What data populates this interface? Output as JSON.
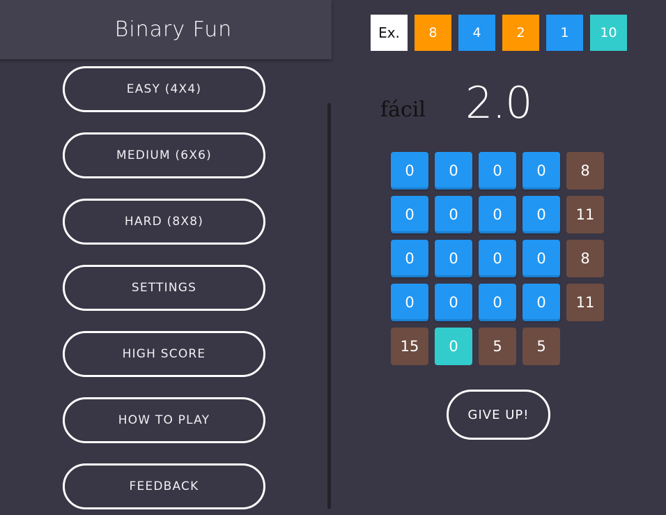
{
  "drawer": {
    "title": "Binary Fun",
    "menu": [
      {
        "label": "EASY (4X4)"
      },
      {
        "label": "MEDIUM (6X6)"
      },
      {
        "label": "HARD (8X8)"
      },
      {
        "label": "SETTINGS"
      },
      {
        "label": "HIGH SCORE"
      },
      {
        "label": "HOW TO PLAY"
      },
      {
        "label": "FEEDBACK"
      }
    ]
  },
  "example": {
    "label": "Ex.",
    "bits": [
      {
        "value": "8",
        "color": "#ff9800"
      },
      {
        "value": "4",
        "color": "#2196f3"
      },
      {
        "value": "2",
        "color": "#ff9800"
      },
      {
        "value": "1",
        "color": "#2196f3"
      },
      {
        "value": "10",
        "color": "#33cccc"
      }
    ]
  },
  "level": {
    "label": "fácil",
    "value": "2.0"
  },
  "grid": {
    "rows": [
      {
        "bits": [
          "0",
          "0",
          "0",
          "0"
        ],
        "target": "8"
      },
      {
        "bits": [
          "0",
          "0",
          "0",
          "0"
        ],
        "target": "11"
      },
      {
        "bits": [
          "0",
          "0",
          "0",
          "0"
        ],
        "target": "8"
      },
      {
        "bits": [
          "0",
          "0",
          "0",
          "0"
        ],
        "target": "11"
      }
    ],
    "bottom": [
      "15",
      "0",
      "5",
      "5"
    ]
  },
  "actions": {
    "give_up": "GIVE UP!"
  },
  "colors": {
    "background": "#393645",
    "header": "#434050",
    "bit_blue": "#2196f3",
    "bit_orange": "#ff9800",
    "target_brown": "#6d4c41",
    "answer_teal": "#33cccc"
  }
}
